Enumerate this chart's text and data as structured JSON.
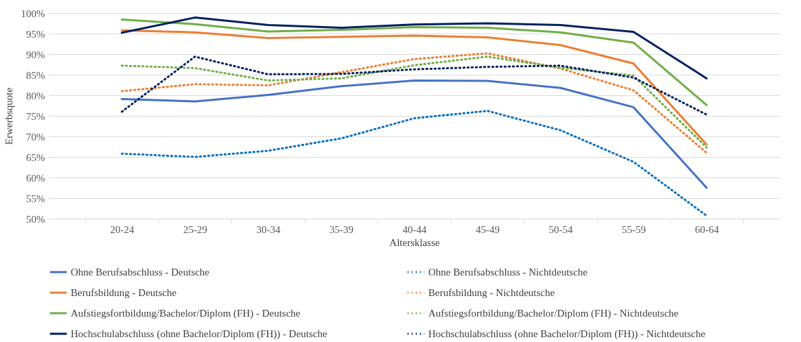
{
  "chart_data": {
    "type": "line",
    "xlabel": "Altersklasse",
    "ylabel": "Erwerbsquote",
    "categories": [
      "20-24",
      "25-29",
      "30-34",
      "35-39",
      "40-44",
      "45-49",
      "50-54",
      "55-59",
      "60-64"
    ],
    "ylim": [
      50,
      100
    ],
    "yticks": [
      {
        "value": 50,
        "label": "50%"
      },
      {
        "value": 55,
        "label": "55%"
      },
      {
        "value": 60,
        "label": "60%"
      },
      {
        "value": 65,
        "label": "65%"
      },
      {
        "value": 70,
        "label": "70%"
      },
      {
        "value": 75,
        "label": "75%"
      },
      {
        "value": 80,
        "label": "80%"
      },
      {
        "value": 85,
        "label": "85%"
      },
      {
        "value": 90,
        "label": "90%"
      },
      {
        "value": 95,
        "label": "95%"
      },
      {
        "value": 100,
        "label": "100%"
      }
    ],
    "grid": "y",
    "legend": "bottom",
    "marker": "none",
    "series": [
      {
        "name": "Ohne Berufsabschluss - Deutsche",
        "color": "#4472c4",
        "line_style": "solid",
        "values": [
          79.1,
          78.5,
          80.1,
          82.2,
          83.6,
          83.5,
          81.8,
          77.1,
          57.5
        ]
      },
      {
        "name": "Ohne Berufsabschluss - Nichtdeutsche",
        "color": "#0070c0",
        "line_style": "dotted",
        "values": [
          65.8,
          65.0,
          66.5,
          69.5,
          74.4,
          76.2,
          71.5,
          63.8,
          50.7
        ]
      },
      {
        "name": "Berufsbildung - Deutsche",
        "color": "#ed7d31",
        "line_style": "solid",
        "values": [
          95.8,
          95.3,
          93.9,
          94.2,
          94.5,
          94.1,
          92.2,
          87.7,
          68.0
        ]
      },
      {
        "name": "Berufsbildung - Nichtdeutsche",
        "color": "#ed7d31",
        "line_style": "dotted",
        "values": [
          81.0,
          82.7,
          82.4,
          85.6,
          88.8,
          90.2,
          86.5,
          81.2,
          66.0
        ]
      },
      {
        "name": "Aufstiegsfortbildung/Bachelor/Diplom (FH) - Deutsche",
        "color": "#70ad47",
        "line_style": "solid",
        "values": [
          98.4,
          97.3,
          95.5,
          95.9,
          96.6,
          96.4,
          95.3,
          92.8,
          77.6
        ]
      },
      {
        "name": "Aufstiegsfortbildung/Bachelor/Diplom (FH)  - Nichtdeutsche",
        "color": "#70ad47",
        "line_style": "dotted",
        "values": [
          87.2,
          86.6,
          83.6,
          84.1,
          87.3,
          89.4,
          86.7,
          84.8,
          67.3
        ]
      },
      {
        "name": "Hochschulabschluss (ohne Bachelor/Diplom (FH)) - Deutsche",
        "color": "#002060",
        "line_style": "solid",
        "values": [
          95.2,
          98.9,
          97.1,
          96.4,
          97.2,
          97.5,
          97.1,
          95.4,
          84.1
        ]
      },
      {
        "name": "Hochschulabschluss (ohne Bachelor/Diplom (FH))  - Nichtdeutsche",
        "color": "#002060",
        "line_style": "dotted",
        "values": [
          76.0,
          89.4,
          85.1,
          85.2,
          86.3,
          86.9,
          87.2,
          84.3,
          75.3
        ]
      }
    ]
  }
}
